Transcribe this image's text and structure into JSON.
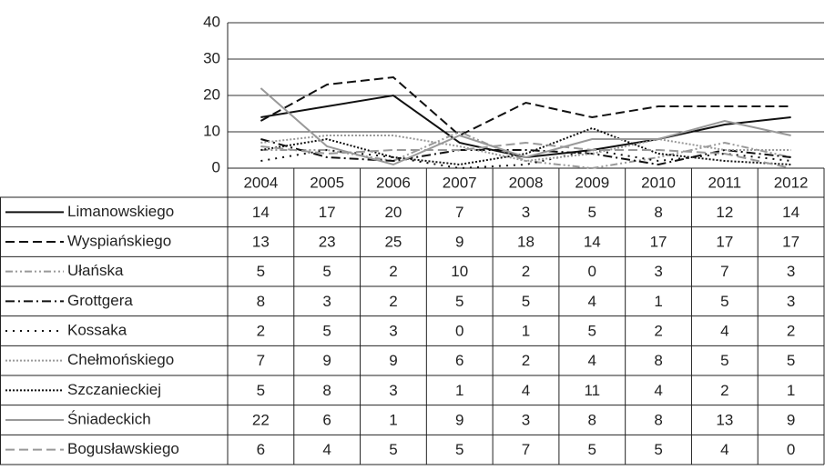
{
  "chart_data": {
    "type": "line",
    "categories": [
      "2004",
      "2005",
      "2006",
      "2007",
      "2008",
      "2009",
      "2010",
      "2011",
      "2012"
    ],
    "ylim": [
      0,
      40
    ],
    "yticks": [
      0,
      10,
      20,
      30,
      40
    ],
    "grid": true,
    "series": [
      {
        "name": "Limanowskiego",
        "color": "#111111",
        "style": "solid",
        "values": [
          14,
          17,
          20,
          7,
          3,
          5,
          8,
          12,
          14
        ]
      },
      {
        "name": "Wyspiańskiego",
        "color": "#111111",
        "style": "dashed",
        "values": [
          13,
          23,
          25,
          9,
          18,
          14,
          17,
          17,
          17
        ]
      },
      {
        "name": "Ułańska",
        "color": "#999999",
        "style": "dash-dot-dot",
        "values": [
          5,
          5,
          2,
          10,
          2,
          0,
          3,
          7,
          3
        ]
      },
      {
        "name": "Grottgera",
        "color": "#111111",
        "style": "dash-dot",
        "values": [
          8,
          3,
          2,
          5,
          5,
          4,
          1,
          5,
          3
        ]
      },
      {
        "name": "Kossaka",
        "color": "#111111",
        "style": "sparse-dot",
        "values": [
          2,
          5,
          3,
          0,
          1,
          5,
          2,
          4,
          2
        ]
      },
      {
        "name": "Chełmońskiego",
        "color": "#999999",
        "style": "dotted",
        "values": [
          7,
          9,
          9,
          6,
          2,
          4,
          8,
          5,
          5
        ]
      },
      {
        "name": "Szczanieckiej",
        "color": "#111111",
        "style": "dotted",
        "values": [
          5,
          8,
          3,
          1,
          4,
          11,
          4,
          2,
          1
        ]
      },
      {
        "name": "Śniadeckich",
        "color": "#999999",
        "style": "solid",
        "values": [
          22,
          6,
          1,
          9,
          3,
          8,
          8,
          13,
          9
        ]
      },
      {
        "name": "Bogusławskiego",
        "color": "#999999",
        "style": "dashed",
        "values": [
          6,
          4,
          5,
          5,
          7,
          5,
          5,
          4,
          0
        ]
      }
    ]
  }
}
